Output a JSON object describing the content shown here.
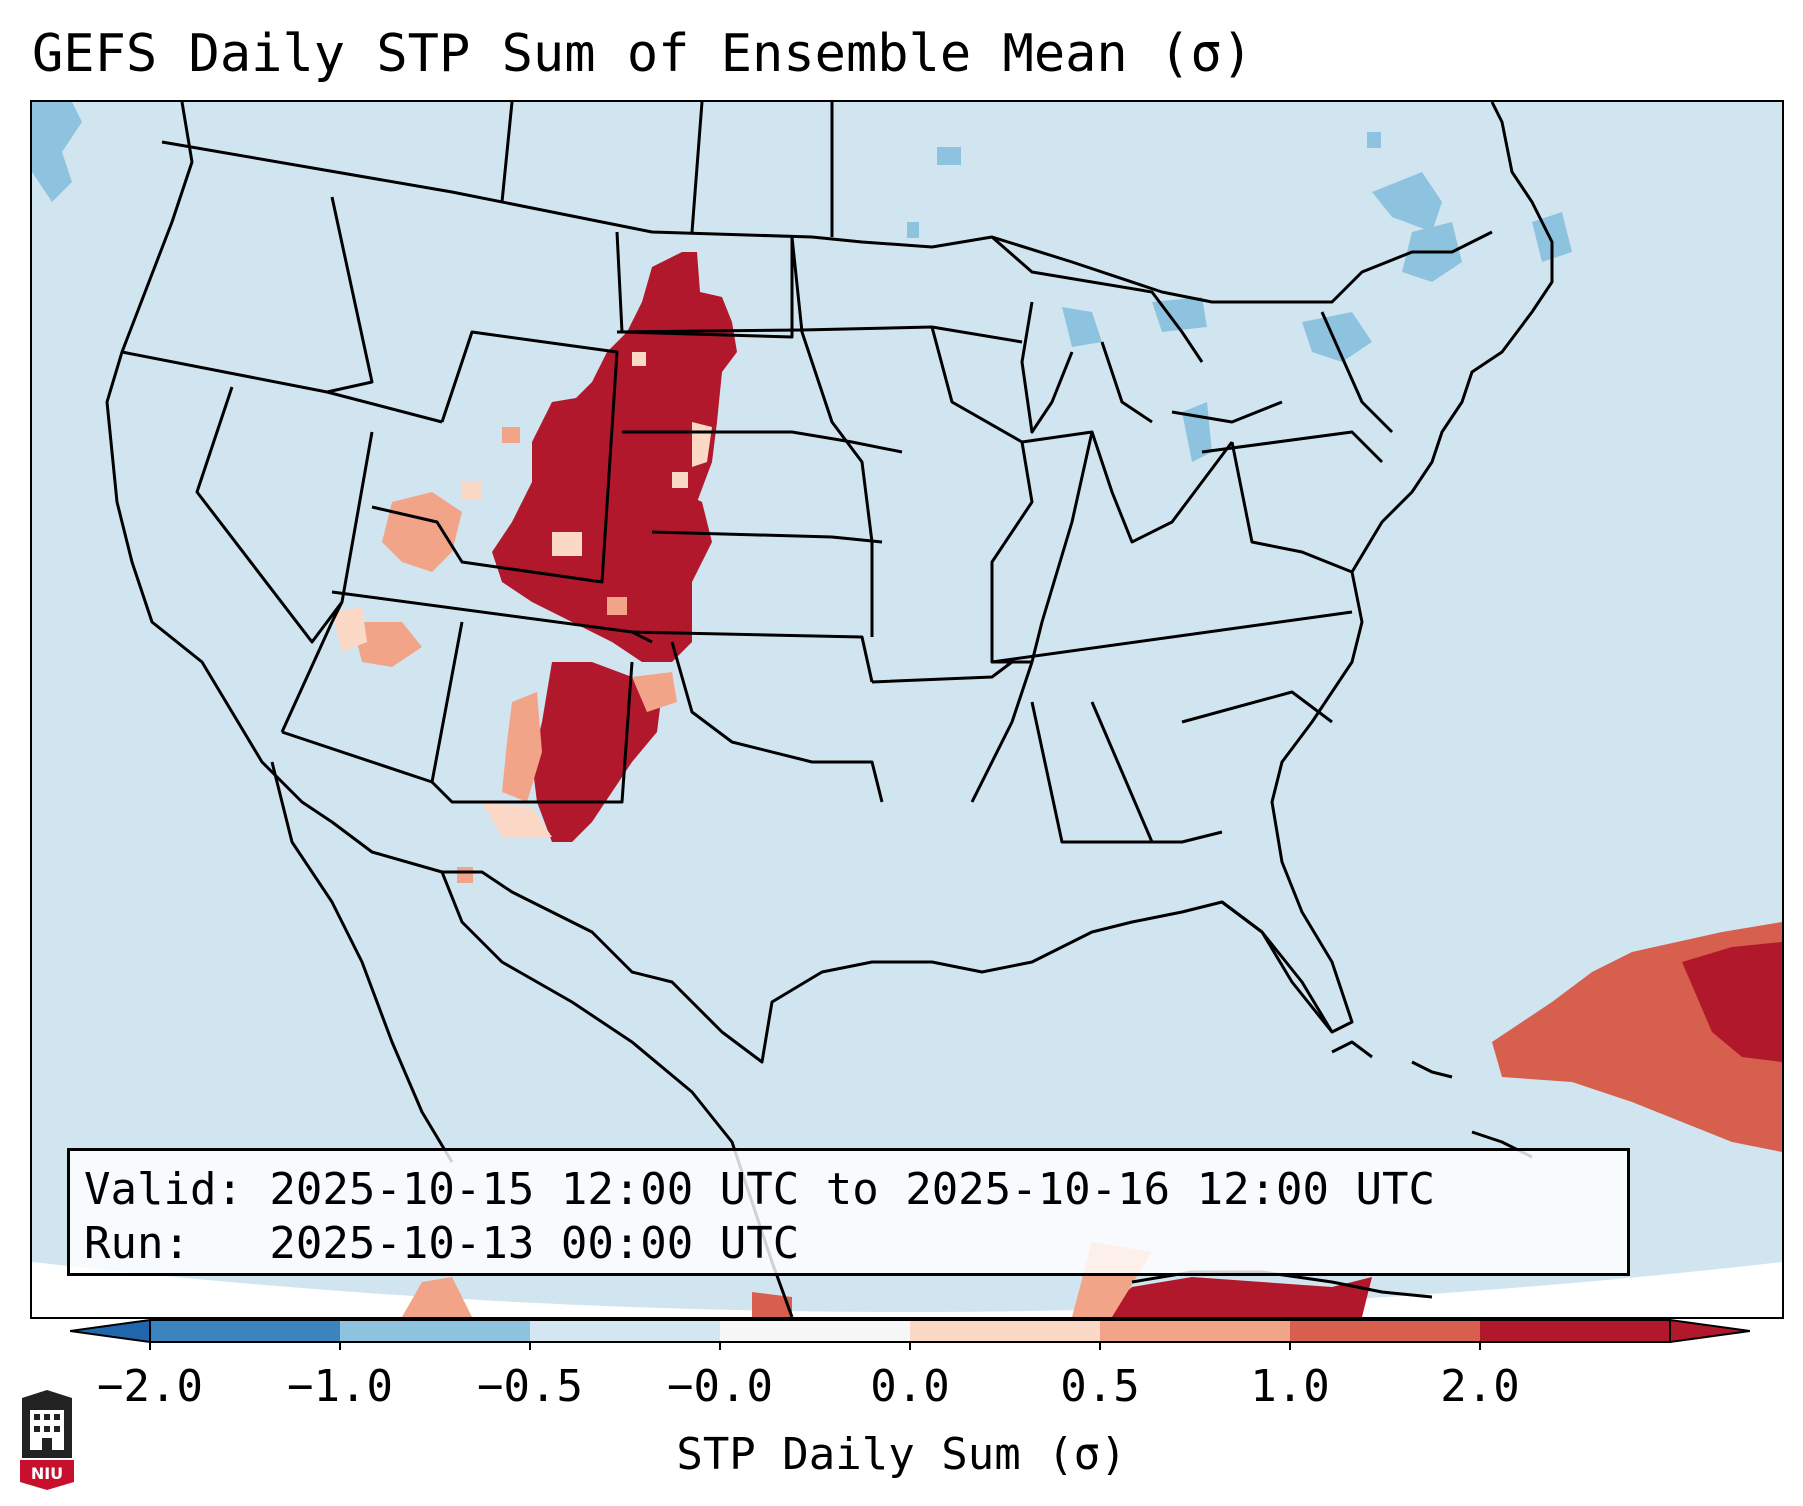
{
  "title": "GEFS Daily STP Sum of Ensemble Mean (σ)",
  "info": {
    "valid_line": "Valid: 2025-10-15 12:00 UTC to 2025-10-16 12:00 UTC",
    "run_line": "Run:   2025-10-13 00:00 UTC"
  },
  "colorbar": {
    "label": "STP Daily Sum (σ)",
    "ticks": [
      "−2.0",
      "−1.0",
      "−0.5",
      "−0.0",
      "0.0",
      "0.5",
      "1.0",
      "2.0"
    ],
    "colors": [
      "#3a84c0",
      "#8ec3e0",
      "#d4e6f1",
      "#f7f7f7",
      "#fcd9c6",
      "#f2a489",
      "#d6604d",
      "#b2182b"
    ],
    "extend": "both"
  },
  "logo": {
    "text": "NIU"
  },
  "map": {
    "region": "CONUS",
    "background_color": "#d1e5f0",
    "highlights": [
      {
        "area": "Wyoming / Colorado / New Mexico / western Nebraska & Kansas",
        "level": "> 2.0 σ",
        "color": "#b2182b"
      },
      {
        "area": "Utah / Arizona border",
        "level": "0.0 – 1.0 σ",
        "color": "#f2a489"
      },
      {
        "area": "Caribbean / Cuba",
        "level": "0.5 – 2.0 σ",
        "color": "#d6604d"
      },
      {
        "area": "Great Lakes / New England",
        "level": "−0.5 – −1.0 σ",
        "color": "#8ec3e0"
      }
    ]
  }
}
